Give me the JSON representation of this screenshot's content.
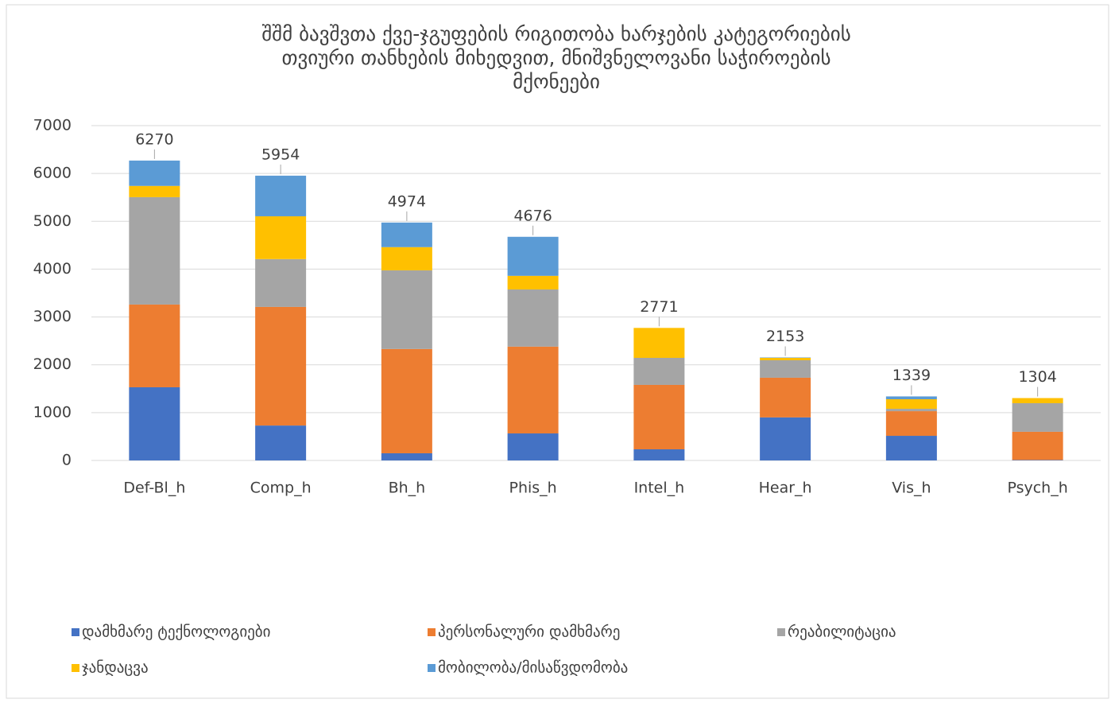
{
  "chart_data": {
    "type": "stacked_bar",
    "title": [
      "შშმ ბავშვთა ქვე-ჯგუფების რიგითობა ხარჯების კატეგორიების",
      "თვიური თანხების  მიხედვით, მნიშვნელოვანი საჭიროების",
      "მქონეები"
    ],
    "categories": [
      "Def-Bl_h",
      "Comp_h",
      "Bh_h",
      "Phis_h",
      "Intel_h",
      "Hear_h",
      "Vis_h",
      "Psych_h"
    ],
    "series": [
      {
        "name": "დამხმარე ტექნოლოგიები",
        "color": "#4472c4",
        "values": [
          1530,
          730,
          150,
          565,
          233,
          900,
          515,
          10
        ]
      },
      {
        "name": "პერსონალური დამხმარე",
        "color": "#ed7d31",
        "values": [
          1730,
          2480,
          2180,
          1815,
          1347,
          830,
          515,
          590
        ]
      },
      {
        "name": "რეაბილიტაცია",
        "color": "#a5a5a5",
        "values": [
          2245,
          1000,
          1645,
          1195,
          565,
          365,
          50,
          597
        ]
      },
      {
        "name": "ჯანდაცვა",
        "color": "#ffc000",
        "values": [
          235,
          895,
          485,
          285,
          626,
          50,
          200,
          107
        ]
      },
      {
        "name": "მობილობა/მისაწვდომობა",
        "color": "#5b9bd5",
        "values": [
          530,
          849,
          514,
          816,
          0,
          8,
          59,
          0
        ]
      }
    ],
    "totals": [
      6270,
      5954,
      4974,
      4676,
      2771,
      2153,
      1339,
      1304
    ],
    "ylim": [
      0,
      7000
    ],
    "yticks": [
      0,
      1000,
      2000,
      3000,
      4000,
      5000,
      6000,
      7000
    ],
    "grid": true
  }
}
